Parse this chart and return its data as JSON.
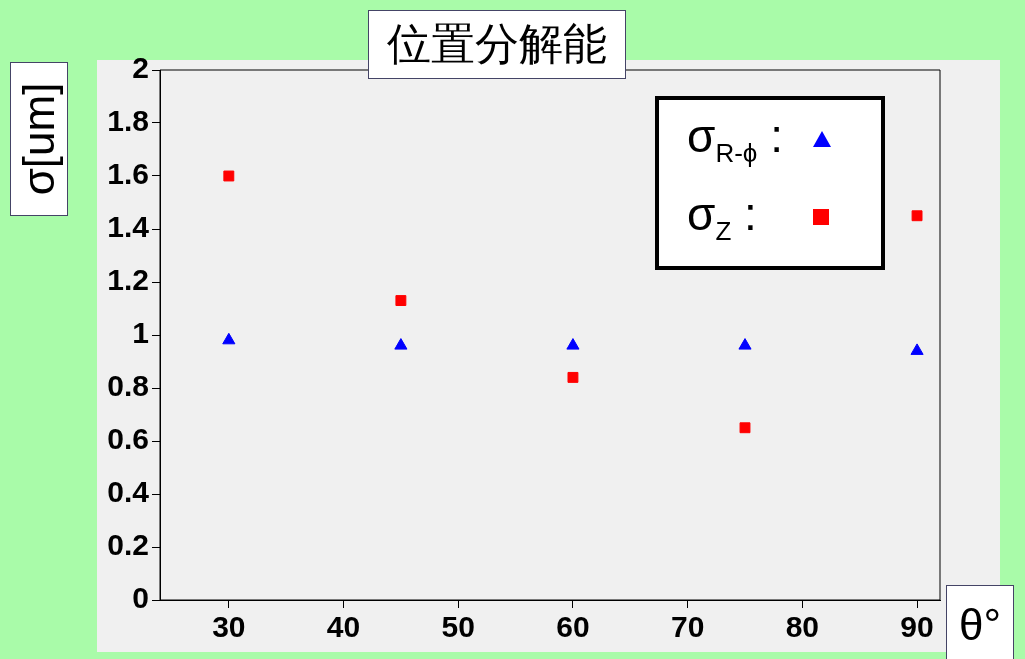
{
  "chart_data": {
    "type": "scatter",
    "title": "位置分解能",
    "xlabel": "θ°",
    "ylabel": "σ[um]",
    "xlim": [
      24,
      92
    ],
    "xticks": [
      30,
      40,
      50,
      60,
      70,
      80,
      90
    ],
    "ylim": [
      0,
      2
    ],
    "yticks": [
      0,
      0.2,
      0.4,
      0.6,
      0.8,
      1,
      1.2,
      1.4,
      1.6,
      1.8,
      2
    ],
    "grid": false,
    "legend": "top right",
    "x": [
      30,
      45,
      60,
      75,
      90
    ],
    "series": [
      {
        "name": "σ$_{R-ϕ}$ :",
        "color": "#0000ff",
        "marker": "triangle",
        "values": [
          0.98,
          0.96,
          0.96,
          0.96,
          0.94
        ]
      },
      {
        "name": "σ$_{Z}$ :",
        "color": "#ff0000",
        "marker": "square",
        "values": [
          1.6,
          1.13,
          0.84,
          0.65,
          1.45
        ]
      }
    ]
  }
}
